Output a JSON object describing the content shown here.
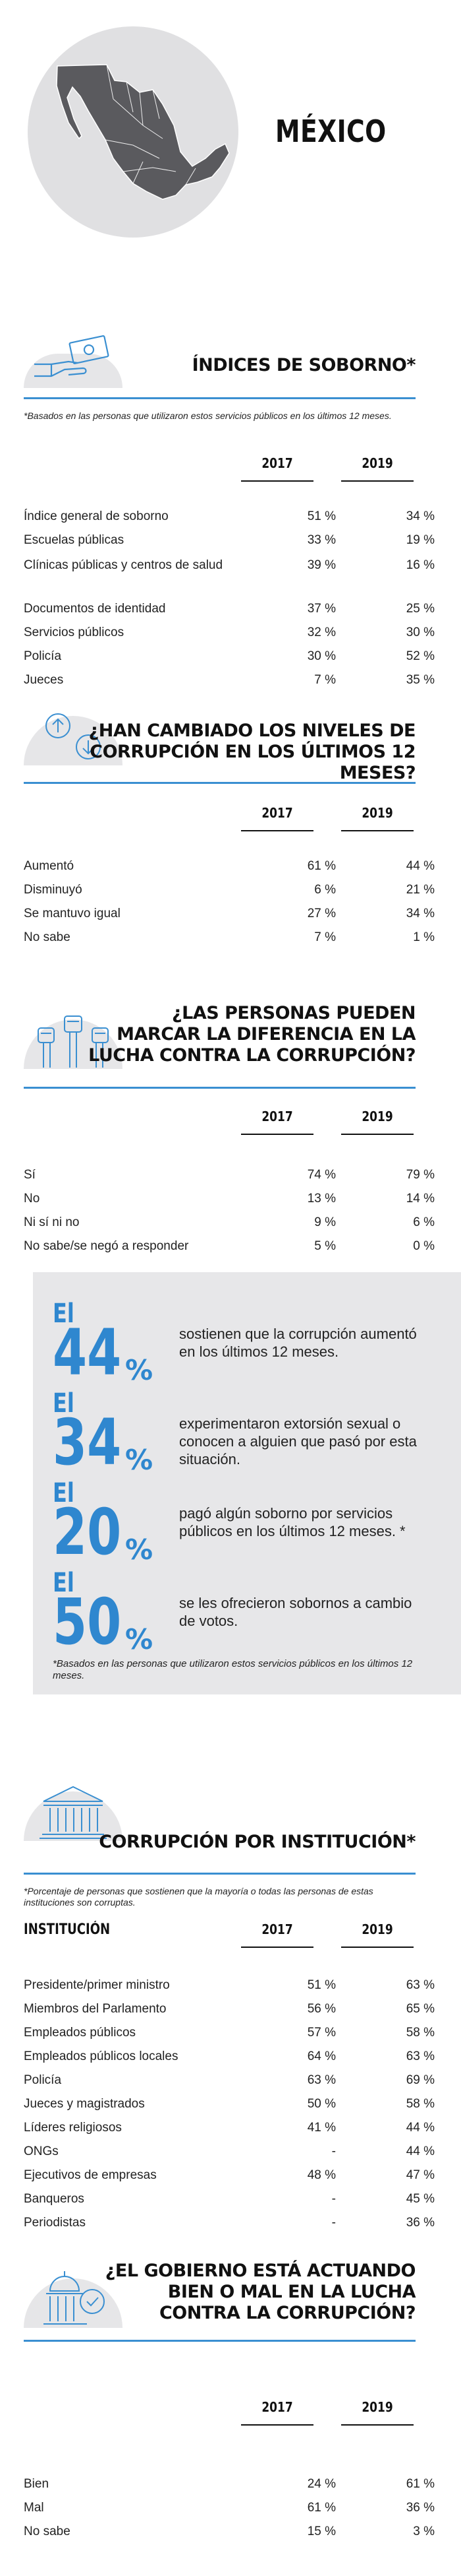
{
  "country": "MÉXICO",
  "colors": {
    "accent": "#2f87cf",
    "rule": "#3a8fd1",
    "map": "#5a5a5e",
    "circle": "#e0e0e2"
  },
  "bribery": {
    "title": "ÍNDICES DE SOBORNO*",
    "note": "*Basados en las personas que utilizaron estos servicios públicos en los últimos 12 meses.",
    "years": [
      "2017",
      "2019"
    ],
    "rows": [
      {
        "label": "Índice general de soborno",
        "v2017": "51 %",
        "v2019": "34 %"
      },
      {
        "label": "Escuelas públicas",
        "v2017": "33 %",
        "v2019": "19 %"
      },
      {
        "label": "Clínicas públicas y centros de salud",
        "v2017": "39 %",
        "v2019": "16 %"
      },
      {
        "label": "Documentos de identidad",
        "v2017": "37 %",
        "v2019": "25 %"
      },
      {
        "label": "Servicios públicos",
        "v2017": "32 %",
        "v2019": "30 %"
      },
      {
        "label": "Policía",
        "v2017": "30 %",
        "v2019": "52 %"
      },
      {
        "label": "Jueces",
        "v2017": "7 %",
        "v2019": "35 %"
      }
    ]
  },
  "levels": {
    "title_line1": "¿HAN CAMBIADO LOS NIVELES DE",
    "title_line2": "CORRUPCIÓN EN LOS ÚLTIMOS 12 MESES?",
    "years": [
      "2017",
      "2019"
    ],
    "rows": [
      {
        "label": "Aumentó",
        "v2017": "61 %",
        "v2019": "44 %"
      },
      {
        "label": "Disminuyó",
        "v2017": "6 %",
        "v2019": "21 %"
      },
      {
        "label": "Se mantuvo igual",
        "v2017": "27 %",
        "v2019": "34 %"
      },
      {
        "label": "No sabe",
        "v2017": "7 %",
        "v2019": "1 %"
      }
    ]
  },
  "difference": {
    "title_line1": "¿LAS PERSONAS PUEDEN",
    "title_line2": "MARCAR LA DIFERENCIA EN LA",
    "title_line3": "LUCHA CONTRA LA CORRUPCIÓN?",
    "years": [
      "2017",
      "2019"
    ],
    "rows": [
      {
        "label": "Sí",
        "v2017": "74 %",
        "v2019": "79 %"
      },
      {
        "label": "No",
        "v2017": "13 %",
        "v2019": "14 %"
      },
      {
        "label": "Ni sí ni no",
        "v2017": "9 %",
        "v2019": "6 %"
      },
      {
        "label": "No sabe/se negó a responder",
        "v2017": "5 %",
        "v2019": "0 %"
      }
    ]
  },
  "stats": {
    "items": [
      {
        "prefix": "El",
        "number": "44",
        "pct": "%",
        "text": "sostienen que la corrupción aumentó en los últimos 12 meses."
      },
      {
        "prefix": "El",
        "number": "34",
        "pct": "%",
        "text": "experimentaron extorsión sexual o conocen a alguien que pasó por esta situación."
      },
      {
        "prefix": "El",
        "number": "20",
        "pct": "%",
        "text": "pagó algún soborno por servicios públicos en los últimos 12 meses. *"
      },
      {
        "prefix": "El",
        "number": "50",
        "pct": "%",
        "text": "se les ofrecieron sobornos a cambio de votos."
      }
    ],
    "note": "*Basados en las personas que utilizaron estos servicios públicos en los últimos 12 meses."
  },
  "institution": {
    "title": "CORRUPCIÓN POR INSTITUCIÓN*",
    "note": "*Porcentaje de personas que sostienen que la mayoría o todas las personas de estas instituciones son corruptas.",
    "column_label": "INSTITUCIÓN",
    "years": [
      "2017",
      "2019"
    ],
    "rows": [
      {
        "label": "Presidente/primer ministro",
        "v2017": "51 %",
        "v2019": "63 %"
      },
      {
        "label": "Miembros del Parlamento",
        "v2017": "56 %",
        "v2019": "65 %"
      },
      {
        "label": "Empleados públicos",
        "v2017": "57 %",
        "v2019": "58 %"
      },
      {
        "label": "Empleados públicos locales",
        "v2017": "64 %",
        "v2019": "63 %"
      },
      {
        "label": "Policía",
        "v2017": "63 %",
        "v2019": "69 %"
      },
      {
        "label": "Jueces y magistrados",
        "v2017": "50 %",
        "v2019": "58 %"
      },
      {
        "label": "Líderes religiosos",
        "v2017": "41 %",
        "v2019": "44 %"
      },
      {
        "label": "ONGs",
        "v2017": "-",
        "v2019": "44 %"
      },
      {
        "label": "Ejecutivos de empresas",
        "v2017": "48 %",
        "v2019": "47 %"
      },
      {
        "label": "Banqueros",
        "v2017": "-",
        "v2019": "45 %"
      },
      {
        "label": "Periodistas",
        "v2017": "-",
        "v2019": "36 %"
      }
    ]
  },
  "government": {
    "title_line1": "¿EL GOBIERNO ESTÁ ACTUANDO",
    "title_line2": "BIEN O MAL EN LA LUCHA",
    "title_line3": "CONTRA LA CORRUPCIÓN?",
    "years": [
      "2017",
      "2019"
    ],
    "rows": [
      {
        "label": "Bien",
        "v2017": "24 %",
        "v2019": "61 %"
      },
      {
        "label": "Mal",
        "v2017": "61 %",
        "v2019": "36 %"
      },
      {
        "label": "No sabe",
        "v2017": "15 %",
        "v2019": "3 %"
      }
    ]
  }
}
